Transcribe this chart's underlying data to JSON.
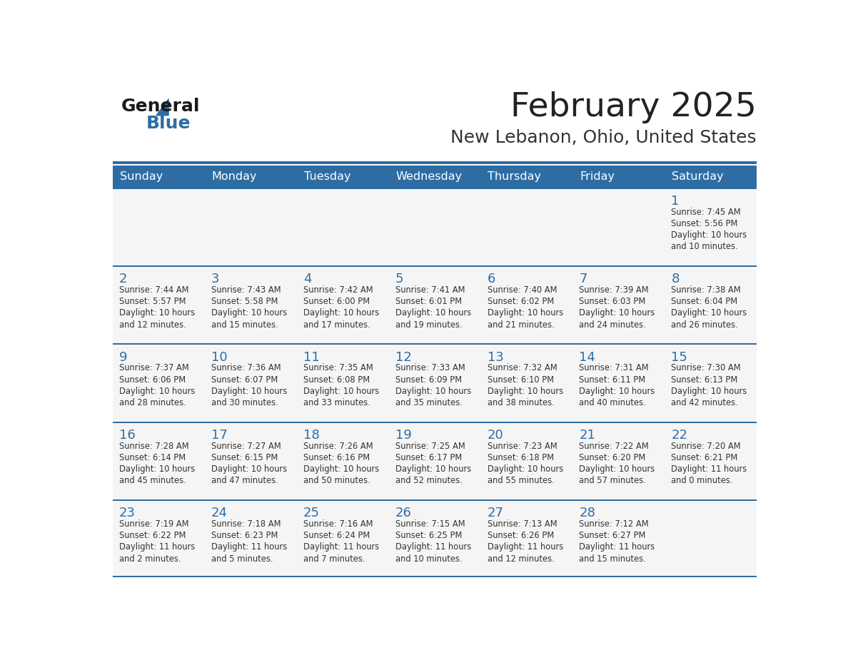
{
  "title": "February 2025",
  "subtitle": "New Lebanon, Ohio, United States",
  "header_bg_color": "#2E6DA4",
  "header_text_color": "#FFFFFF",
  "cell_bg_color": "#F5F5F5",
  "border_color": "#2E6DA4",
  "day_headers": [
    "Sunday",
    "Monday",
    "Tuesday",
    "Wednesday",
    "Thursday",
    "Friday",
    "Saturday"
  ],
  "title_color": "#222222",
  "subtitle_color": "#333333",
  "day_number_color": "#2E6DA4",
  "cell_text_color": "#333333",
  "calendar_data": [
    [
      null,
      null,
      null,
      null,
      null,
      null,
      {
        "day": 1,
        "sunrise": "7:45 AM",
        "sunset": "5:56 PM",
        "daylight": "10 hours and 10 minutes."
      }
    ],
    [
      {
        "day": 2,
        "sunrise": "7:44 AM",
        "sunset": "5:57 PM",
        "daylight": "10 hours and 12 minutes."
      },
      {
        "day": 3,
        "sunrise": "7:43 AM",
        "sunset": "5:58 PM",
        "daylight": "10 hours and 15 minutes."
      },
      {
        "day": 4,
        "sunrise": "7:42 AM",
        "sunset": "6:00 PM",
        "daylight": "10 hours and 17 minutes."
      },
      {
        "day": 5,
        "sunrise": "7:41 AM",
        "sunset": "6:01 PM",
        "daylight": "10 hours and 19 minutes."
      },
      {
        "day": 6,
        "sunrise": "7:40 AM",
        "sunset": "6:02 PM",
        "daylight": "10 hours and 21 minutes."
      },
      {
        "day": 7,
        "sunrise": "7:39 AM",
        "sunset": "6:03 PM",
        "daylight": "10 hours and 24 minutes."
      },
      {
        "day": 8,
        "sunrise": "7:38 AM",
        "sunset": "6:04 PM",
        "daylight": "10 hours and 26 minutes."
      }
    ],
    [
      {
        "day": 9,
        "sunrise": "7:37 AM",
        "sunset": "6:06 PM",
        "daylight": "10 hours and 28 minutes."
      },
      {
        "day": 10,
        "sunrise": "7:36 AM",
        "sunset": "6:07 PM",
        "daylight": "10 hours and 30 minutes."
      },
      {
        "day": 11,
        "sunrise": "7:35 AM",
        "sunset": "6:08 PM",
        "daylight": "10 hours and 33 minutes."
      },
      {
        "day": 12,
        "sunrise": "7:33 AM",
        "sunset": "6:09 PM",
        "daylight": "10 hours and 35 minutes."
      },
      {
        "day": 13,
        "sunrise": "7:32 AM",
        "sunset": "6:10 PM",
        "daylight": "10 hours and 38 minutes."
      },
      {
        "day": 14,
        "sunrise": "7:31 AM",
        "sunset": "6:11 PM",
        "daylight": "10 hours and 40 minutes."
      },
      {
        "day": 15,
        "sunrise": "7:30 AM",
        "sunset": "6:13 PM",
        "daylight": "10 hours and 42 minutes."
      }
    ],
    [
      {
        "day": 16,
        "sunrise": "7:28 AM",
        "sunset": "6:14 PM",
        "daylight": "10 hours and 45 minutes."
      },
      {
        "day": 17,
        "sunrise": "7:27 AM",
        "sunset": "6:15 PM",
        "daylight": "10 hours and 47 minutes."
      },
      {
        "day": 18,
        "sunrise": "7:26 AM",
        "sunset": "6:16 PM",
        "daylight": "10 hours and 50 minutes."
      },
      {
        "day": 19,
        "sunrise": "7:25 AM",
        "sunset": "6:17 PM",
        "daylight": "10 hours and 52 minutes."
      },
      {
        "day": 20,
        "sunrise": "7:23 AM",
        "sunset": "6:18 PM",
        "daylight": "10 hours and 55 minutes."
      },
      {
        "day": 21,
        "sunrise": "7:22 AM",
        "sunset": "6:20 PM",
        "daylight": "10 hours and 57 minutes."
      },
      {
        "day": 22,
        "sunrise": "7:20 AM",
        "sunset": "6:21 PM",
        "daylight": "11 hours and 0 minutes."
      }
    ],
    [
      {
        "day": 23,
        "sunrise": "7:19 AM",
        "sunset": "6:22 PM",
        "daylight": "11 hours and 2 minutes."
      },
      {
        "day": 24,
        "sunrise": "7:18 AM",
        "sunset": "6:23 PM",
        "daylight": "11 hours and 5 minutes."
      },
      {
        "day": 25,
        "sunrise": "7:16 AM",
        "sunset": "6:24 PM",
        "daylight": "11 hours and 7 minutes."
      },
      {
        "day": 26,
        "sunrise": "7:15 AM",
        "sunset": "6:25 PM",
        "daylight": "11 hours and 10 minutes."
      },
      {
        "day": 27,
        "sunrise": "7:13 AM",
        "sunset": "6:26 PM",
        "daylight": "11 hours and 12 minutes."
      },
      {
        "day": 28,
        "sunrise": "7:12 AM",
        "sunset": "6:27 PM",
        "daylight": "11 hours and 15 minutes."
      },
      null
    ]
  ]
}
